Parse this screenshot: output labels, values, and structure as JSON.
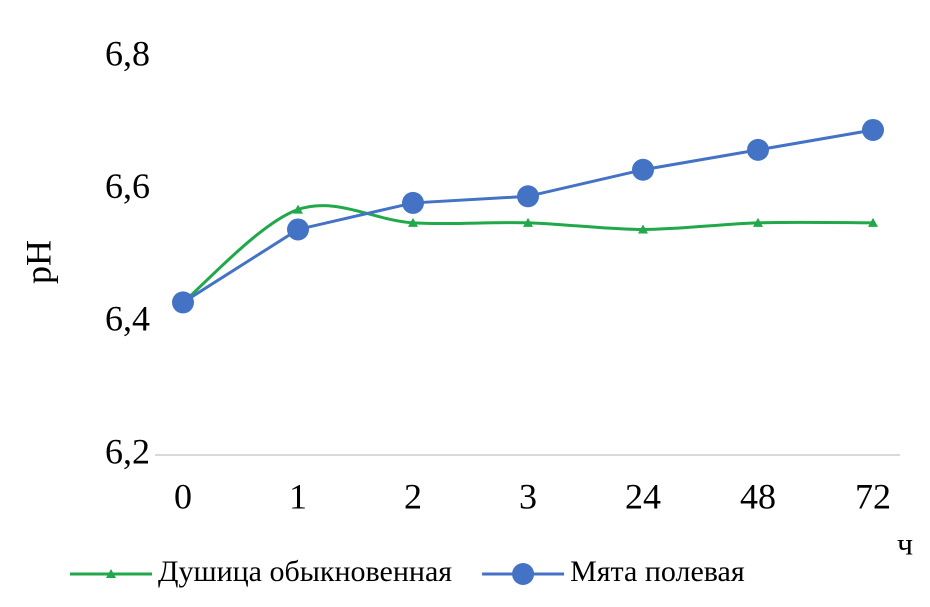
{
  "chart_data": {
    "type": "line",
    "x_label": "ч",
    "y_label": "pH",
    "categories": [
      "0",
      "1",
      "2",
      "3",
      "24",
      "48",
      "72"
    ],
    "series": [
      {
        "name": "Душица обыкновенная",
        "color": "#21a84a",
        "marker": "triangle",
        "smooth": true,
        "values": [
          6.43,
          6.57,
          6.55,
          6.55,
          6.54,
          6.55,
          6.55
        ]
      },
      {
        "name": "Мята полевая",
        "color": "#4472c4",
        "marker": "circle",
        "smooth": false,
        "values": [
          6.43,
          6.54,
          6.58,
          6.59,
          6.63,
          6.66,
          6.69
        ]
      }
    ],
    "ylim": [
      6.2,
      6.8
    ],
    "yticks": [
      {
        "value": 6.2,
        "label": "6,2"
      },
      {
        "value": 6.4,
        "label": "6,4"
      },
      {
        "value": 6.6,
        "label": "6,6"
      },
      {
        "value": 6.8,
        "label": "6,8"
      }
    ],
    "grid": false,
    "legend": "bottom"
  }
}
